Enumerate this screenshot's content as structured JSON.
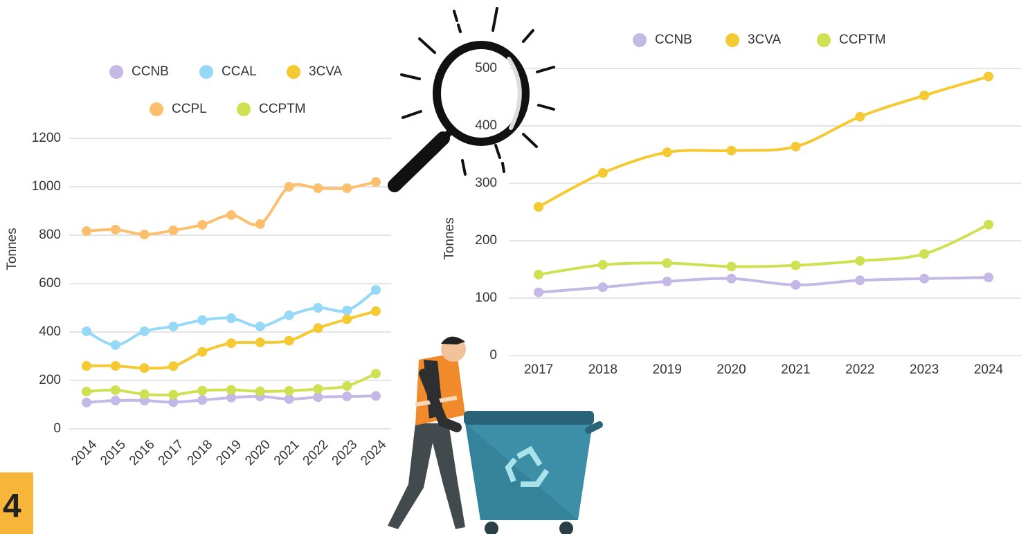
{
  "page_number": "4",
  "chart_data": [
    {
      "type": "line",
      "ylabel": "Tonnes",
      "categories": [
        "2014",
        "2015",
        "2016",
        "2017",
        "2018",
        "2019",
        "2020",
        "2021",
        "2022",
        "2023",
        "2024"
      ],
      "ylim": [
        0,
        1200
      ],
      "yticks": [
        0,
        200,
        400,
        600,
        800,
        1000,
        1200
      ],
      "grid": true,
      "series": [
        {
          "name": "CCNB",
          "color": "#c3b8e6",
          "values": [
            109,
            117,
            117,
            110,
            119,
            129,
            134,
            123,
            131,
            134,
            136
          ]
        },
        {
          "name": "CCAL",
          "color": "#95d8f7",
          "values": [
            403,
            346,
            403,
            423,
            449,
            457,
            423,
            469,
            500,
            489,
            574
          ]
        },
        {
          "name": "3CVA",
          "color": "#f5c932",
          "values": [
            260,
            260,
            251,
            259,
            318,
            354,
            357,
            364,
            416,
            453,
            486
          ]
        },
        {
          "name": "CCPL",
          "color": "#fbbf6e",
          "values": [
            817,
            823,
            803,
            820,
            843,
            883,
            846,
            1000,
            994,
            994,
            1020
          ]
        },
        {
          "name": "CCPTM",
          "color": "#cfe052",
          "values": [
            154,
            160,
            143,
            141,
            158,
            161,
            155,
            157,
            165,
            177,
            228
          ]
        }
      ]
    },
    {
      "type": "line",
      "ylabel": "Tonnes",
      "categories": [
        "2017",
        "2018",
        "2019",
        "2020",
        "2021",
        "2022",
        "2023",
        "2024"
      ],
      "ylim": [
        0,
        500
      ],
      "yticks": [
        0,
        100,
        200,
        300,
        400,
        500
      ],
      "grid": true,
      "series": [
        {
          "name": "CCNB",
          "color": "#c3b8e6",
          "values": [
            110,
            119,
            129,
            134,
            123,
            131,
            134,
            136
          ]
        },
        {
          "name": "3CVA",
          "color": "#f5c932",
          "values": [
            259,
            318,
            354,
            357,
            364,
            416,
            453,
            486
          ]
        },
        {
          "name": "CCPTM",
          "color": "#cfe052",
          "values": [
            141,
            158,
            161,
            155,
            157,
            165,
            177,
            228
          ]
        }
      ]
    }
  ]
}
